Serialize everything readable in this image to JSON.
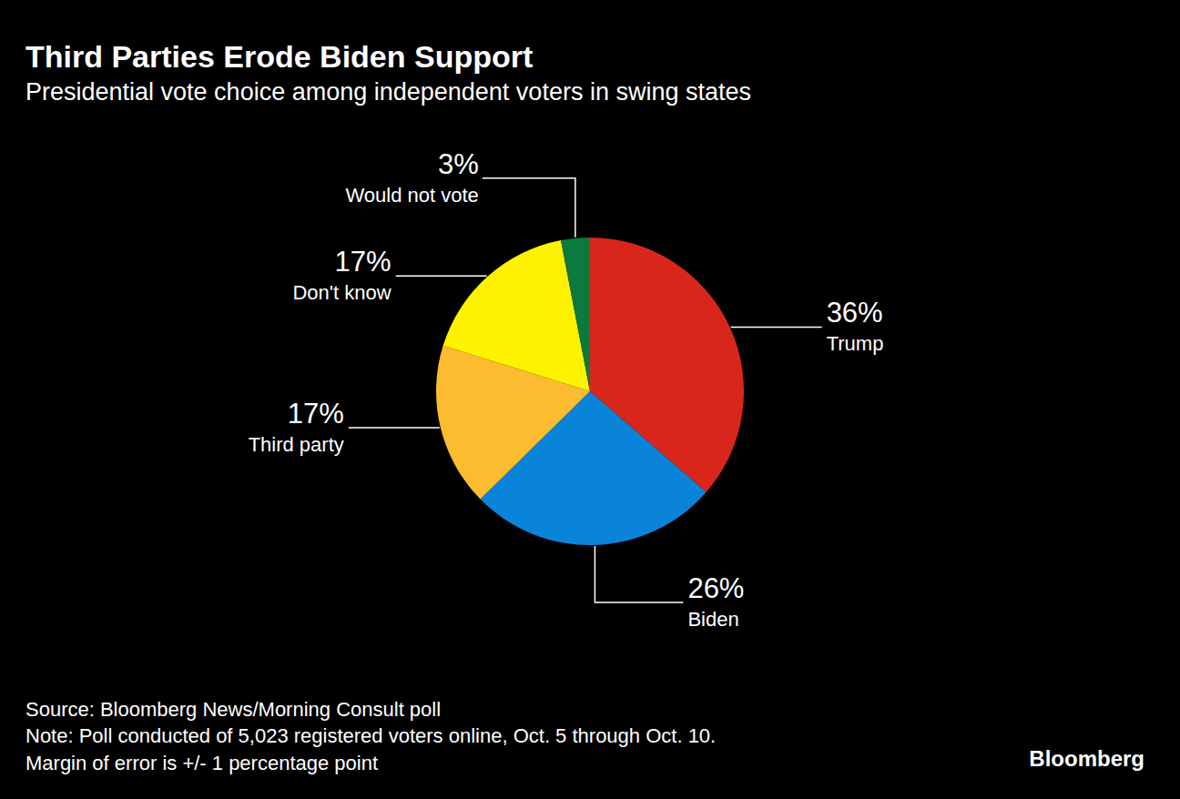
{
  "chart_data": {
    "type": "pie",
    "title": "Third Parties Erode Biden Support",
    "subtitle": "Presidential vote choice among independent voters in swing states",
    "categories": [
      "Trump",
      "Biden",
      "Third party",
      "Don't know",
      "Would not vote"
    ],
    "values": [
      36,
      26,
      17,
      17,
      3
    ],
    "value_labels": [
      "36%",
      "26%",
      "17%",
      "17%",
      "3%"
    ],
    "colors": [
      "#d9261c",
      "#0a84d8",
      "#fbbc2f",
      "#fff200",
      "#0a7b3c"
    ],
    "data_labels": true,
    "source": "Source: Bloomberg News/Morning Consult poll",
    "notes": [
      "Note: Poll conducted of 5,023 registered voters online, Oct. 5 through Oct. 10.",
      "Margin of error is +/- 1 percentage point"
    ],
    "brand": "Bloomberg"
  }
}
